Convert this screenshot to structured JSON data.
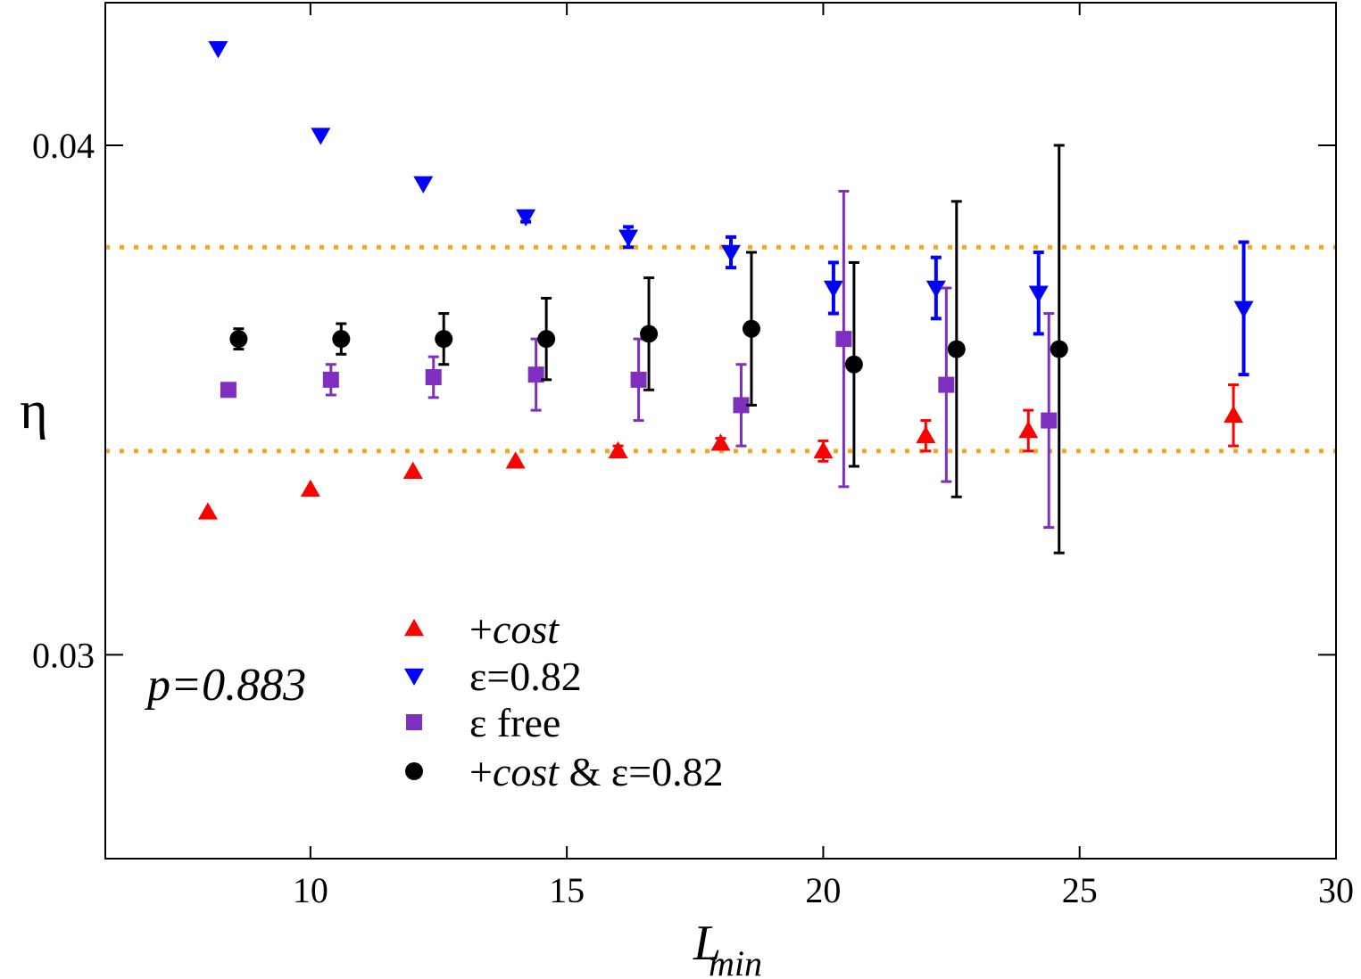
{
  "chart_data": {
    "type": "scatter",
    "xlabel": "L",
    "xlabel_sub": "min",
    "ylabel": "η",
    "xlim": [
      6,
      30
    ],
    "ylim": [
      0.026,
      0.0428
    ],
    "xticks": [
      10,
      15,
      20,
      25,
      30
    ],
    "xtick_labels": [
      "10",
      "15",
      "20",
      "25",
      "30"
    ],
    "yticks": [
      0.03,
      0.04
    ],
    "ytick_labels": [
      "0.03",
      "0.04"
    ],
    "grid": false,
    "legend_position": "bottom-center",
    "annotation": "p=0.883",
    "hlines": [
      {
        "y": 0.038,
        "color": "#f5a623",
        "style": "dotted"
      },
      {
        "y": 0.034,
        "color": "#f5a623",
        "style": "dotted"
      }
    ],
    "series": [
      {
        "legend_prefix": "+",
        "legend_italic": "cost",
        "legend_suffix": "",
        "marker": "triangle-up",
        "color": "#ff0000",
        "x": [
          8,
          10,
          12,
          14,
          16,
          18,
          20,
          22,
          24,
          28
        ],
        "y": [
          0.0328,
          0.03325,
          0.0336,
          0.0338,
          0.034,
          0.03415,
          0.034,
          0.0343,
          0.0344,
          0.0347
        ],
        "err": [
          0.0,
          0.0,
          0.0,
          0.0,
          0.0001,
          0.0001,
          0.0002,
          0.0003,
          0.0004,
          0.0006
        ]
      },
      {
        "legend_prefix": "ε=0.82",
        "legend_italic": "",
        "legend_suffix": "",
        "marker": "triangle-down",
        "color": "#0000ff",
        "x": [
          8.2,
          10.2,
          12.2,
          14.2,
          16.2,
          18.2,
          20.2,
          22.2,
          24.2,
          28.2
        ],
        "y": [
          0.0419,
          0.0402,
          0.03925,
          0.0386,
          0.0382,
          0.0379,
          0.0372,
          0.0372,
          0.0371,
          0.0368
        ],
        "err": [
          0.0,
          0.0,
          0.0,
          0.0001,
          0.0002,
          0.0003,
          0.0005,
          0.0006,
          0.0008,
          0.0013
        ]
      },
      {
        "legend_prefix": "ε free",
        "legend_italic": "",
        "legend_suffix": "",
        "marker": "square",
        "color": "#7f2fbf",
        "x": [
          8.4,
          10.4,
          12.4,
          14.4,
          16.4,
          18.4,
          20.4,
          22.4,
          24.4
        ],
        "y": [
          0.0352,
          0.0354,
          0.03545,
          0.0355,
          0.0354,
          0.0349,
          0.0362,
          0.0353,
          0.0346
        ],
        "err": [
          0.0001,
          0.0003,
          0.0004,
          0.0007,
          0.0008,
          0.0008,
          0.0029,
          0.0019,
          0.0021
        ]
      },
      {
        "legend_prefix": "+",
        "legend_italic": "cost",
        "legend_suffix": " & ε=0.82",
        "marker": "circle",
        "color": "#000000",
        "x": [
          8.6,
          10.6,
          12.6,
          14.6,
          16.6,
          18.6,
          20.6,
          22.6,
          24.6
        ],
        "y": [
          0.0362,
          0.0362,
          0.0362,
          0.0362,
          0.0363,
          0.0364,
          0.0357,
          0.036,
          0.036
        ],
        "err": [
          0.0002,
          0.0003,
          0.0005,
          0.0008,
          0.0011,
          0.0015,
          0.002,
          0.0029,
          0.004
        ]
      }
    ]
  }
}
